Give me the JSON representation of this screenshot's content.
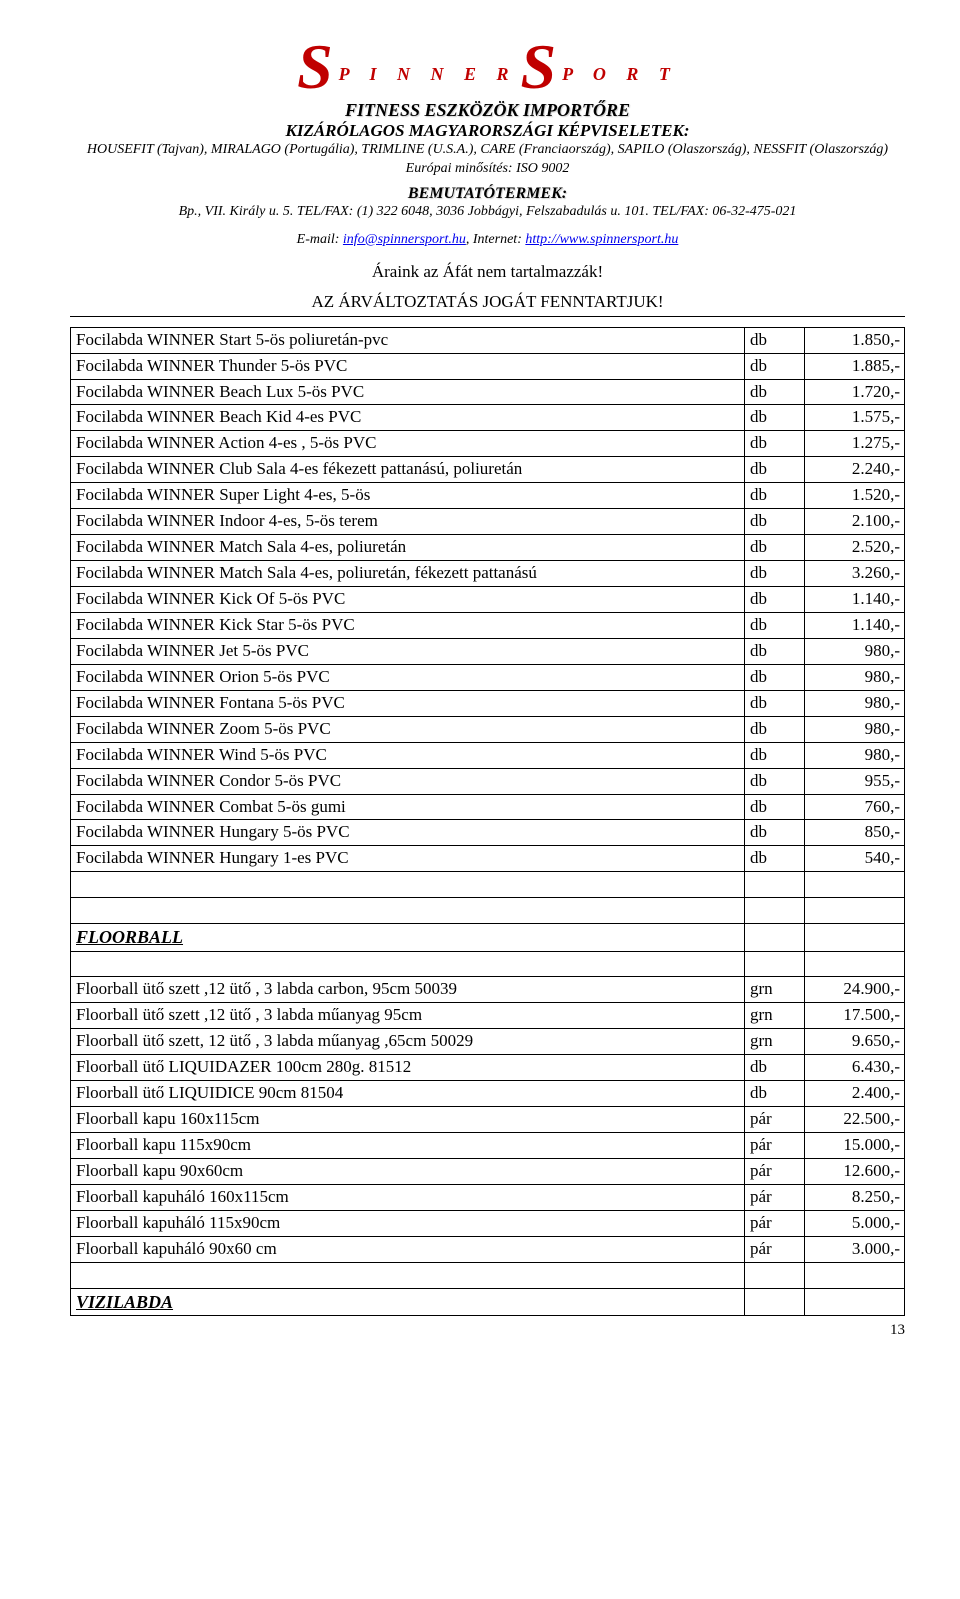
{
  "header": {
    "logo_left_big": "S",
    "logo_left_small": "P I N N E R",
    "logo_right_big": "S",
    "logo_right_small": "P O R T",
    "tagline": "FITNESS ESZKÖZÖK IMPORTŐRE",
    "sub1": "KIZÁRÓLAGOS MAGYARORSZÁGI KÉPVISELETEK:",
    "sub2": "HOUSEFIT (Tajvan), MIRALAGO (Portugália), TRIMLINE (U.S.A.), CARE (Franciaország), SAPILO (Olaszország), NESSFIT (Olaszország)",
    "sub3": "Európai minősítés: ISO 9002",
    "section_label": "BEMUTATÓTERMEK:",
    "address": "Bp., VII. Király u. 5. TEL/FAX: (1) 322 6048, 3036 Jobbágyi, Felszabadulás u. 101. TEL/FAX: 06-32-475-021",
    "email_prefix": "E-mail: ",
    "email": "info@spinnersport.hu",
    "internet_prefix": ", Internet: ",
    "internet": "http://www.spinnersport.hu",
    "note1": "Áraink az Áfát nem tartalmazzák!",
    "note2": "AZ ÁRVÁLTOZTATÁS JOGÁT FENNTARTJUK!"
  },
  "rows": [
    {
      "type": "item",
      "name": "Focilabda WINNER Start 5-ös  poliuretán-pvc",
      "unit": "db",
      "price": "1.850,-"
    },
    {
      "type": "item",
      "name": "Focilabda WINNER Thunder 5-ös PVC",
      "unit": "db",
      "price": "1.885,-"
    },
    {
      "type": "item",
      "name": "Focilabda WINNER Beach Lux 5-ös PVC",
      "unit": "db",
      "price": "1.720,-"
    },
    {
      "type": "item",
      "name": "Focilabda WINNER Beach Kid 4-es PVC",
      "unit": "db",
      "price": "1.575,-"
    },
    {
      "type": "item",
      "name": "Focilabda WINNER Action 4-es , 5-ös PVC",
      "unit": "db",
      "price": "1.275,-"
    },
    {
      "type": "item",
      "name": "Focilabda WINNER Club Sala 4-es fékezett pattanású, poliuretán",
      "unit": "db",
      "price": "2.240,-"
    },
    {
      "type": "item",
      "name": "Focilabda WINNER Super Light 4-es, 5-ös",
      "unit": "db",
      "price": "1.520,-"
    },
    {
      "type": "item",
      "name": "Focilabda WINNER Indoor 4-es, 5-ös terem",
      "unit": "db",
      "price": "2.100,-"
    },
    {
      "type": "item",
      "name": "Focilabda WINNER Match Sala 4-es, poliuretán",
      "unit": "db",
      "price": "2.520,-"
    },
    {
      "type": "item",
      "name": "Focilabda WINNER Match Sala 4-es, poliuretán, fékezett pattanású",
      "unit": "db",
      "price": "3.260,-"
    },
    {
      "type": "item",
      "name": "Focilabda WINNER Kick Of   5-ös PVC",
      "unit": "db",
      "price": "1.140,-"
    },
    {
      "type": "item",
      "name": "Focilabda WINNER Kick Star 5-ös PVC",
      "unit": "db",
      "price": "1.140,-"
    },
    {
      "type": "item",
      "name": "Focilabda WINNER Jet 5-ös  PVC",
      "unit": "db",
      "price": "980,-"
    },
    {
      "type": "item",
      "name": "Focilabda WINNER Orion 5-ös PVC",
      "unit": "db",
      "price": "980,-"
    },
    {
      "type": "item",
      "name": "Focilabda WINNER Fontana 5-ös PVC",
      "unit": "db",
      "price": "980,-"
    },
    {
      "type": "item",
      "name": "Focilabda WINNER Zoom 5-ös PVC",
      "unit": "db",
      "price": "980,-"
    },
    {
      "type": "item",
      "name": "Focilabda WINNER Wind 5-ös PVC",
      "unit": "db",
      "price": "980,-"
    },
    {
      "type": "item",
      "name": "Focilabda WINNER Condor 5-ös PVC",
      "unit": "db",
      "price": "955,-"
    },
    {
      "type": "item",
      "name": "Focilabda WINNER Combat 5-ös gumi",
      "unit": "db",
      "price": "760,-"
    },
    {
      "type": "item",
      "name": "Focilabda WINNER Hungary 5-ös PVC",
      "unit": "db",
      "price": "850,-"
    },
    {
      "type": "item",
      "name": "Focilabda WINNER Hungary 1-es PVC",
      "unit": "db",
      "price": "540,-"
    },
    {
      "type": "empty"
    },
    {
      "type": "empty"
    },
    {
      "type": "section",
      "label": "FLOORBALL"
    },
    {
      "type": "empty"
    },
    {
      "type": "item",
      "name": "Floorball ütő szett ,12 ütő , 3 labda carbon, 95cm                  50039",
      "unit": "grn",
      "price": "24.900,-"
    },
    {
      "type": "item",
      "name": "Floorball ütő szett ,12 ütő , 3 labda műanyag 95cm",
      "unit": "grn",
      "price": "17.500,-"
    },
    {
      "type": "item",
      "name": "Floorball ütő szett, 12 ütő , 3 labda  műanyag ,65cm               50029",
      "unit": "grn",
      "price": "9.650,-"
    },
    {
      "type": "item",
      "name": "Floorball ütő LIQUIDAZER  100cm 280g.                               81512",
      "unit": "db",
      "price": "6.430,-"
    },
    {
      "type": "item",
      "name": "Floorball ütő LIQUIDICE        90cm                                      81504",
      "unit": "db",
      "price": "2.400,-"
    },
    {
      "type": "item",
      "name": "Floorball kapu 160x115cm",
      "unit": "pár",
      "price": "22.500,-"
    },
    {
      "type": "item",
      "name": "Floorball kapu 115x90cm",
      "unit": "pár",
      "price": "15.000,-"
    },
    {
      "type": "item",
      "name": "Floorball kapu 90x60cm",
      "unit": "pár",
      "price": "12.600,-"
    },
    {
      "type": "item",
      "name": "Floorball kapuháló    160x115cm",
      "unit": "pár",
      "price": "8.250,-"
    },
    {
      "type": "item",
      "name": "Floorball kapuháló    115x90cm",
      "unit": "pár",
      "price": "5.000,-"
    },
    {
      "type": "item",
      "name": "Floorball kapuháló    90x60 cm",
      "unit": "pár",
      "price": "3.000,-"
    },
    {
      "type": "empty"
    },
    {
      "type": "section",
      "label": "VIZILABDA"
    }
  ],
  "page_number": "13"
}
